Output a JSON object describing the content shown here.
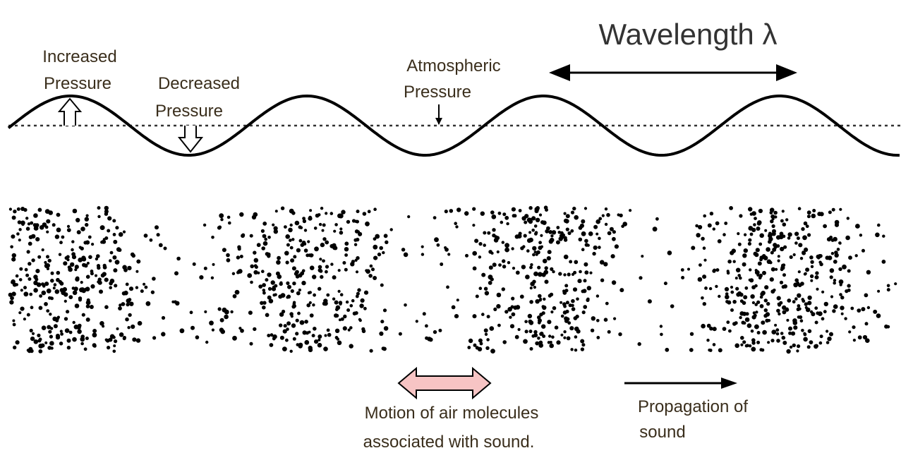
{
  "title": "Wavelength λ",
  "labels": [
    {
      "name": "increased-pressure",
      "lines": [
        "Increased",
        "Pressure"
      ]
    },
    {
      "name": "decreased-pressure",
      "lines": [
        "Decreased",
        "Pressure"
      ]
    },
    {
      "name": "atmospheric-pressure",
      "lines": [
        "Atmospheric",
        "Pressure"
      ]
    },
    {
      "name": "motion-caption",
      "lines": [
        "Motion of air molecules",
        "associated with sound."
      ]
    },
    {
      "name": "propagation-caption",
      "lines": [
        "Propagation of",
        "sound"
      ]
    }
  ]
}
